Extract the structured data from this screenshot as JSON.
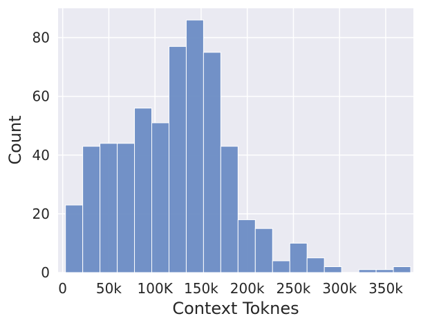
{
  "chart_data": {
    "type": "bar",
    "title": "",
    "xlabel": "Context Toknes",
    "ylabel": "Count",
    "xlim": [
      -5000,
      380000
    ],
    "ylim": [
      0,
      90
    ],
    "grid": true,
    "background": "#eaeaf2",
    "bar_color": "#6b8cc4",
    "bar_edge_color": "#ffffff",
    "xticks": [
      {
        "value": 0,
        "label": "0"
      },
      {
        "value": 50000,
        "label": "50k"
      },
      {
        "value": 100000,
        "label": "100K"
      },
      {
        "value": 150000,
        "label": "150k"
      },
      {
        "value": 200000,
        "label": "200k"
      },
      {
        "value": 250000,
        "label": "250k"
      },
      {
        "value": 300000,
        "label": "300k"
      },
      {
        "value": 350000,
        "label": "350k"
      }
    ],
    "yticks": [
      {
        "value": 0,
        "label": "0"
      },
      {
        "value": 20,
        "label": "20"
      },
      {
        "value": 40,
        "label": "40"
      },
      {
        "value": 60,
        "label": "60"
      },
      {
        "value": 80,
        "label": "80"
      }
    ],
    "bins": {
      "start": 3000,
      "width": 18700,
      "values": [
        23,
        43,
        44,
        44,
        56,
        51,
        77,
        86,
        75,
        43,
        18,
        15,
        4,
        10,
        5,
        2,
        0,
        1,
        1,
        2
      ]
    }
  }
}
